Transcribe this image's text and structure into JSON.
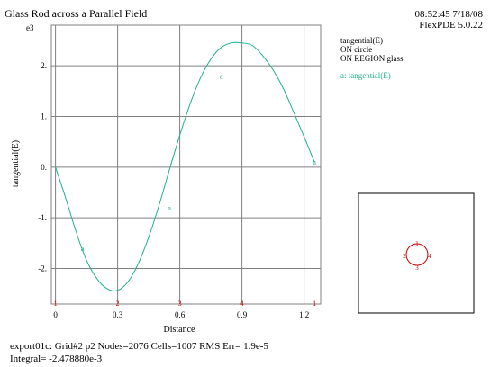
{
  "header": {
    "title": "Glass Rod across a Parallel Field",
    "timestamp": "08:52:45 7/18/08",
    "software": "FlexPDE 5.0.22"
  },
  "chart_data": {
    "type": "line",
    "title": "Glass Rod across a Parallel Field",
    "xlabel": "Distance",
    "ylabel": "tangential(E)",
    "y_multiplier_label": "e3",
    "xlim": [
      -0.02,
      1.28
    ],
    "ylim": [
      -2.7,
      2.8
    ],
    "x_ticks": [
      0,
      0.3,
      0.6,
      0.9,
      1.2
    ],
    "x_tick_labels": [
      "0",
      "0.3",
      "0.6",
      "0.9",
      "1.2"
    ],
    "y_ticks": [
      -2,
      -1,
      0,
      1,
      2
    ],
    "y_tick_labels": [
      "-2.",
      "-1.",
      "0.",
      "1.",
      "2."
    ],
    "grid": true,
    "series": [
      {
        "name": "tangential(E)",
        "marker_label": "a",
        "color": "#20b090",
        "x": [
          0.0,
          0.05,
          0.1,
          0.15,
          0.2,
          0.25,
          0.3,
          0.35,
          0.4,
          0.45,
          0.5,
          0.55,
          0.6,
          0.65,
          0.7,
          0.75,
          0.8,
          0.85,
          0.9,
          0.95,
          1.0,
          1.05,
          1.1,
          1.15,
          1.2,
          1.25
        ],
        "y": [
          0.0,
          -0.62,
          -1.28,
          -1.84,
          -2.2,
          -2.4,
          -2.43,
          -2.26,
          -1.9,
          -1.38,
          -0.75,
          -0.05,
          0.63,
          1.25,
          1.76,
          2.13,
          2.36,
          2.45,
          2.45,
          2.4,
          2.2,
          1.92,
          1.55,
          1.08,
          0.6,
          0.1
        ],
        "markers": [
          {
            "x": 0.13,
            "y": -1.6
          },
          {
            "x": 0.55,
            "y": -0.8
          },
          {
            "x": 0.8,
            "y": 1.8
          },
          {
            "x": 1.25,
            "y": 0.1
          }
        ]
      }
    ],
    "axis_point_labels": [
      {
        "x": 0.0,
        "label": "1"
      },
      {
        "x": 0.3,
        "label": "2"
      },
      {
        "x": 0.6,
        "label": "3"
      },
      {
        "x": 0.9,
        "label": "4"
      },
      {
        "x": 1.25,
        "label": "1"
      }
    ]
  },
  "legend": {
    "lines": [
      "tangential(E)",
      "ON circle",
      "ON REGION glass"
    ],
    "series_entry": "a: tangential(E)",
    "series_color": "#20b090"
  },
  "inset": {
    "point_labels": [
      "1",
      "2",
      "3",
      "4"
    ],
    "curve_color": "#cc0000"
  },
  "footer": {
    "line1": "export01c:  Grid#2  p2  Nodes=2076 Cells=1007 RMS Err= 1.9e-5",
    "line2": "Integral= -2.478880e-3"
  },
  "colors": {
    "grid": "#808080",
    "point_labels": "#cc0000"
  }
}
